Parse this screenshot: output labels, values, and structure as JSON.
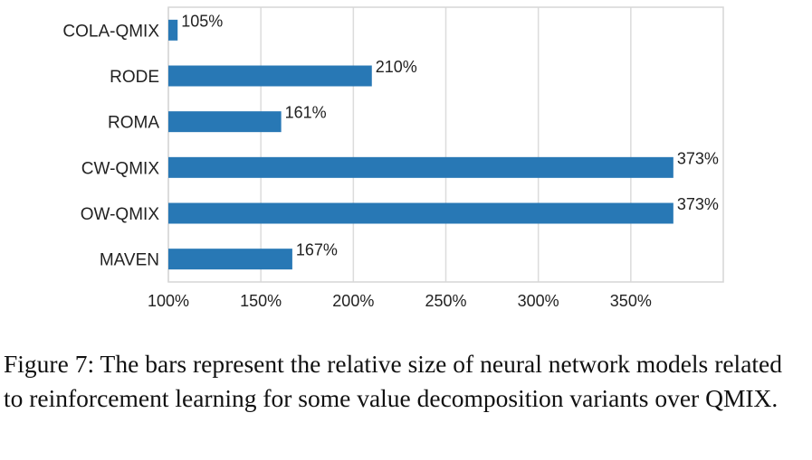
{
  "chart_data": {
    "type": "bar",
    "orientation": "horizontal",
    "categories": [
      "COLA-QMIX",
      "RODE",
      "ROMA",
      "CW-QMIX",
      "OW-QMIX",
      "MAVEN"
    ],
    "values": [
      105,
      210,
      161,
      373,
      373,
      167
    ],
    "value_labels": [
      "105%",
      "210%",
      "161%",
      "373%",
      "373%",
      "167%"
    ],
    "xlim": [
      100,
      400
    ],
    "x_ticks": [
      100,
      150,
      200,
      250,
      300,
      350
    ],
    "x_tick_labels": [
      "100%",
      "150%",
      "200%",
      "250%",
      "300%",
      "350%"
    ],
    "xlabel": "",
    "ylabel": "",
    "title": "",
    "grid": "vertical",
    "bar_color": "#2878b5"
  },
  "caption": "Figure 7: The bars represent the relative size of neural network models related to reinforcement learning for some value decomposition variants over QMIX."
}
